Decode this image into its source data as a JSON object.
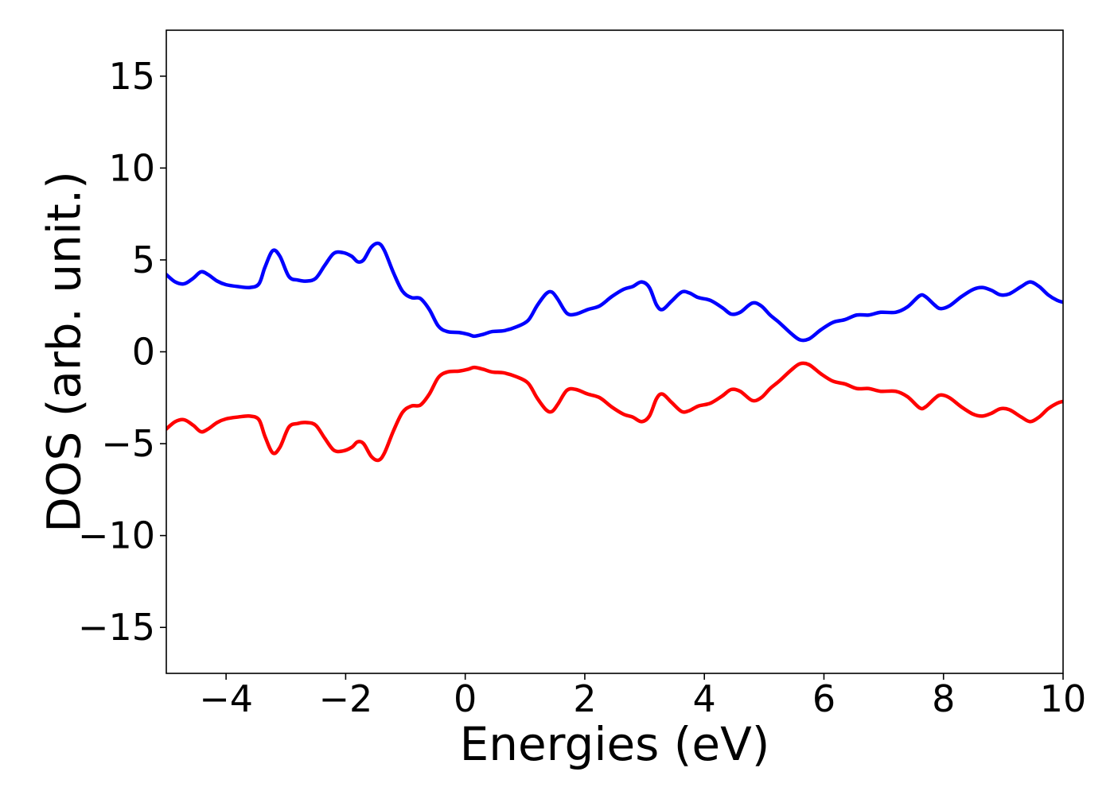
{
  "chart_data": {
    "type": "line",
    "title": "",
    "xlabel": "Energies (eV)",
    "ylabel": "DOS (arb. unit.)",
    "xlim": [
      -5,
      10
    ],
    "ylim": [
      -17.5,
      17.5
    ],
    "xticks": [
      -4,
      -2,
      0,
      2,
      4,
      6,
      8,
      10
    ],
    "yticks": [
      -15,
      -10,
      -5,
      0,
      5,
      10,
      15
    ],
    "xtick_labels": [
      "−4",
      "−2",
      "0",
      "2",
      "4",
      "6",
      "8",
      "10"
    ],
    "ytick_labels": [
      "−15",
      "−10",
      "−5",
      "0",
      "5",
      "10",
      "15"
    ],
    "grid": false,
    "legend": "none",
    "series": [
      {
        "color": "#0000ff",
        "points": [
          [
            -5.0,
            4.2
          ],
          [
            -4.85,
            3.8
          ],
          [
            -4.7,
            3.7
          ],
          [
            -4.55,
            4.0
          ],
          [
            -4.42,
            4.35
          ],
          [
            -4.3,
            4.2
          ],
          [
            -4.15,
            3.85
          ],
          [
            -4.0,
            3.65
          ],
          [
            -3.8,
            3.55
          ],
          [
            -3.6,
            3.5
          ],
          [
            -3.45,
            3.7
          ],
          [
            -3.35,
            4.6
          ],
          [
            -3.22,
            5.5
          ],
          [
            -3.1,
            5.2
          ],
          [
            -2.95,
            4.1
          ],
          [
            -2.8,
            3.9
          ],
          [
            -2.65,
            3.85
          ],
          [
            -2.5,
            4.0
          ],
          [
            -2.35,
            4.7
          ],
          [
            -2.2,
            5.35
          ],
          [
            -2.05,
            5.4
          ],
          [
            -1.9,
            5.2
          ],
          [
            -1.8,
            4.9
          ],
          [
            -1.7,
            5.0
          ],
          [
            -1.57,
            5.7
          ],
          [
            -1.45,
            5.9
          ],
          [
            -1.35,
            5.5
          ],
          [
            -1.2,
            4.3
          ],
          [
            -1.05,
            3.3
          ],
          [
            -0.9,
            2.95
          ],
          [
            -0.75,
            2.9
          ],
          [
            -0.6,
            2.3
          ],
          [
            -0.45,
            1.4
          ],
          [
            -0.3,
            1.1
          ],
          [
            -0.1,
            1.05
          ],
          [
            0.05,
            0.95
          ],
          [
            0.15,
            0.85
          ],
          [
            0.3,
            0.95
          ],
          [
            0.45,
            1.1
          ],
          [
            0.65,
            1.15
          ],
          [
            0.85,
            1.35
          ],
          [
            1.05,
            1.7
          ],
          [
            1.2,
            2.5
          ],
          [
            1.35,
            3.15
          ],
          [
            1.45,
            3.25
          ],
          [
            1.55,
            2.85
          ],
          [
            1.7,
            2.1
          ],
          [
            1.85,
            2.05
          ],
          [
            2.05,
            2.3
          ],
          [
            2.25,
            2.5
          ],
          [
            2.45,
            3.0
          ],
          [
            2.65,
            3.4
          ],
          [
            2.8,
            3.55
          ],
          [
            2.95,
            3.8
          ],
          [
            3.08,
            3.5
          ],
          [
            3.2,
            2.55
          ],
          [
            3.3,
            2.3
          ],
          [
            3.45,
            2.75
          ],
          [
            3.62,
            3.25
          ],
          [
            3.75,
            3.2
          ],
          [
            3.9,
            2.95
          ],
          [
            4.1,
            2.8
          ],
          [
            4.3,
            2.4
          ],
          [
            4.45,
            2.05
          ],
          [
            4.6,
            2.15
          ],
          [
            4.8,
            2.65
          ],
          [
            4.95,
            2.5
          ],
          [
            5.1,
            2.0
          ],
          [
            5.25,
            1.6
          ],
          [
            5.45,
            1.0
          ],
          [
            5.6,
            0.65
          ],
          [
            5.75,
            0.7
          ],
          [
            5.95,
            1.2
          ],
          [
            6.15,
            1.6
          ],
          [
            6.35,
            1.75
          ],
          [
            6.55,
            2.0
          ],
          [
            6.75,
            2.0
          ],
          [
            6.95,
            2.15
          ],
          [
            7.2,
            2.15
          ],
          [
            7.4,
            2.45
          ],
          [
            7.6,
            3.05
          ],
          [
            7.7,
            3.0
          ],
          [
            7.85,
            2.55
          ],
          [
            7.95,
            2.35
          ],
          [
            8.1,
            2.5
          ],
          [
            8.3,
            3.0
          ],
          [
            8.5,
            3.4
          ],
          [
            8.65,
            3.5
          ],
          [
            8.8,
            3.35
          ],
          [
            8.95,
            3.1
          ],
          [
            9.1,
            3.15
          ],
          [
            9.3,
            3.55
          ],
          [
            9.45,
            3.8
          ],
          [
            9.6,
            3.55
          ],
          [
            9.75,
            3.1
          ],
          [
            9.9,
            2.8
          ],
          [
            10.0,
            2.7
          ]
        ]
      },
      {
        "color": "#ff0000",
        "points": [
          [
            -5.0,
            -4.2
          ],
          [
            -4.85,
            -3.8
          ],
          [
            -4.7,
            -3.7
          ],
          [
            -4.55,
            -4.0
          ],
          [
            -4.42,
            -4.35
          ],
          [
            -4.3,
            -4.2
          ],
          [
            -4.15,
            -3.85
          ],
          [
            -4.0,
            -3.65
          ],
          [
            -3.8,
            -3.55
          ],
          [
            -3.6,
            -3.5
          ],
          [
            -3.45,
            -3.7
          ],
          [
            -3.35,
            -4.6
          ],
          [
            -3.22,
            -5.5
          ],
          [
            -3.1,
            -5.2
          ],
          [
            -2.95,
            -4.1
          ],
          [
            -2.8,
            -3.9
          ],
          [
            -2.65,
            -3.85
          ],
          [
            -2.5,
            -4.0
          ],
          [
            -2.35,
            -4.7
          ],
          [
            -2.2,
            -5.35
          ],
          [
            -2.05,
            -5.4
          ],
          [
            -1.9,
            -5.2
          ],
          [
            -1.8,
            -4.9
          ],
          [
            -1.7,
            -5.0
          ],
          [
            -1.57,
            -5.7
          ],
          [
            -1.45,
            -5.9
          ],
          [
            -1.35,
            -5.5
          ],
          [
            -1.2,
            -4.3
          ],
          [
            -1.05,
            -3.3
          ],
          [
            -0.9,
            -2.95
          ],
          [
            -0.75,
            -2.9
          ],
          [
            -0.6,
            -2.3
          ],
          [
            -0.45,
            -1.4
          ],
          [
            -0.3,
            -1.1
          ],
          [
            -0.1,
            -1.05
          ],
          [
            0.05,
            -0.95
          ],
          [
            0.15,
            -0.85
          ],
          [
            0.3,
            -0.95
          ],
          [
            0.45,
            -1.1
          ],
          [
            0.65,
            -1.15
          ],
          [
            0.85,
            -1.35
          ],
          [
            1.05,
            -1.7
          ],
          [
            1.2,
            -2.5
          ],
          [
            1.35,
            -3.15
          ],
          [
            1.45,
            -3.25
          ],
          [
            1.55,
            -2.85
          ],
          [
            1.7,
            -2.1
          ],
          [
            1.85,
            -2.05
          ],
          [
            2.05,
            -2.3
          ],
          [
            2.25,
            -2.5
          ],
          [
            2.45,
            -3.0
          ],
          [
            2.65,
            -3.4
          ],
          [
            2.8,
            -3.55
          ],
          [
            2.95,
            -3.8
          ],
          [
            3.08,
            -3.5
          ],
          [
            3.2,
            -2.55
          ],
          [
            3.3,
            -2.3
          ],
          [
            3.45,
            -2.75
          ],
          [
            3.62,
            -3.25
          ],
          [
            3.75,
            -3.2
          ],
          [
            3.9,
            -2.95
          ],
          [
            4.1,
            -2.8
          ],
          [
            4.3,
            -2.4
          ],
          [
            4.45,
            -2.05
          ],
          [
            4.6,
            -2.15
          ],
          [
            4.8,
            -2.65
          ],
          [
            4.95,
            -2.5
          ],
          [
            5.1,
            -2.0
          ],
          [
            5.25,
            -1.6
          ],
          [
            5.45,
            -1.0
          ],
          [
            5.6,
            -0.65
          ],
          [
            5.75,
            -0.7
          ],
          [
            5.95,
            -1.2
          ],
          [
            6.15,
            -1.6
          ],
          [
            6.35,
            -1.75
          ],
          [
            6.55,
            -2.0
          ],
          [
            6.75,
            -2.0
          ],
          [
            6.95,
            -2.15
          ],
          [
            7.2,
            -2.15
          ],
          [
            7.4,
            -2.45
          ],
          [
            7.6,
            -3.05
          ],
          [
            7.7,
            -3.0
          ],
          [
            7.85,
            -2.55
          ],
          [
            7.95,
            -2.35
          ],
          [
            8.1,
            -2.5
          ],
          [
            8.3,
            -3.0
          ],
          [
            8.5,
            -3.4
          ],
          [
            8.65,
            -3.5
          ],
          [
            8.8,
            -3.35
          ],
          [
            8.95,
            -3.1
          ],
          [
            9.1,
            -3.15
          ],
          [
            9.3,
            -3.55
          ],
          [
            9.45,
            -3.8
          ],
          [
            9.6,
            -3.55
          ],
          [
            9.75,
            -3.1
          ],
          [
            9.9,
            -2.8
          ],
          [
            10.0,
            -2.7
          ]
        ]
      }
    ]
  }
}
